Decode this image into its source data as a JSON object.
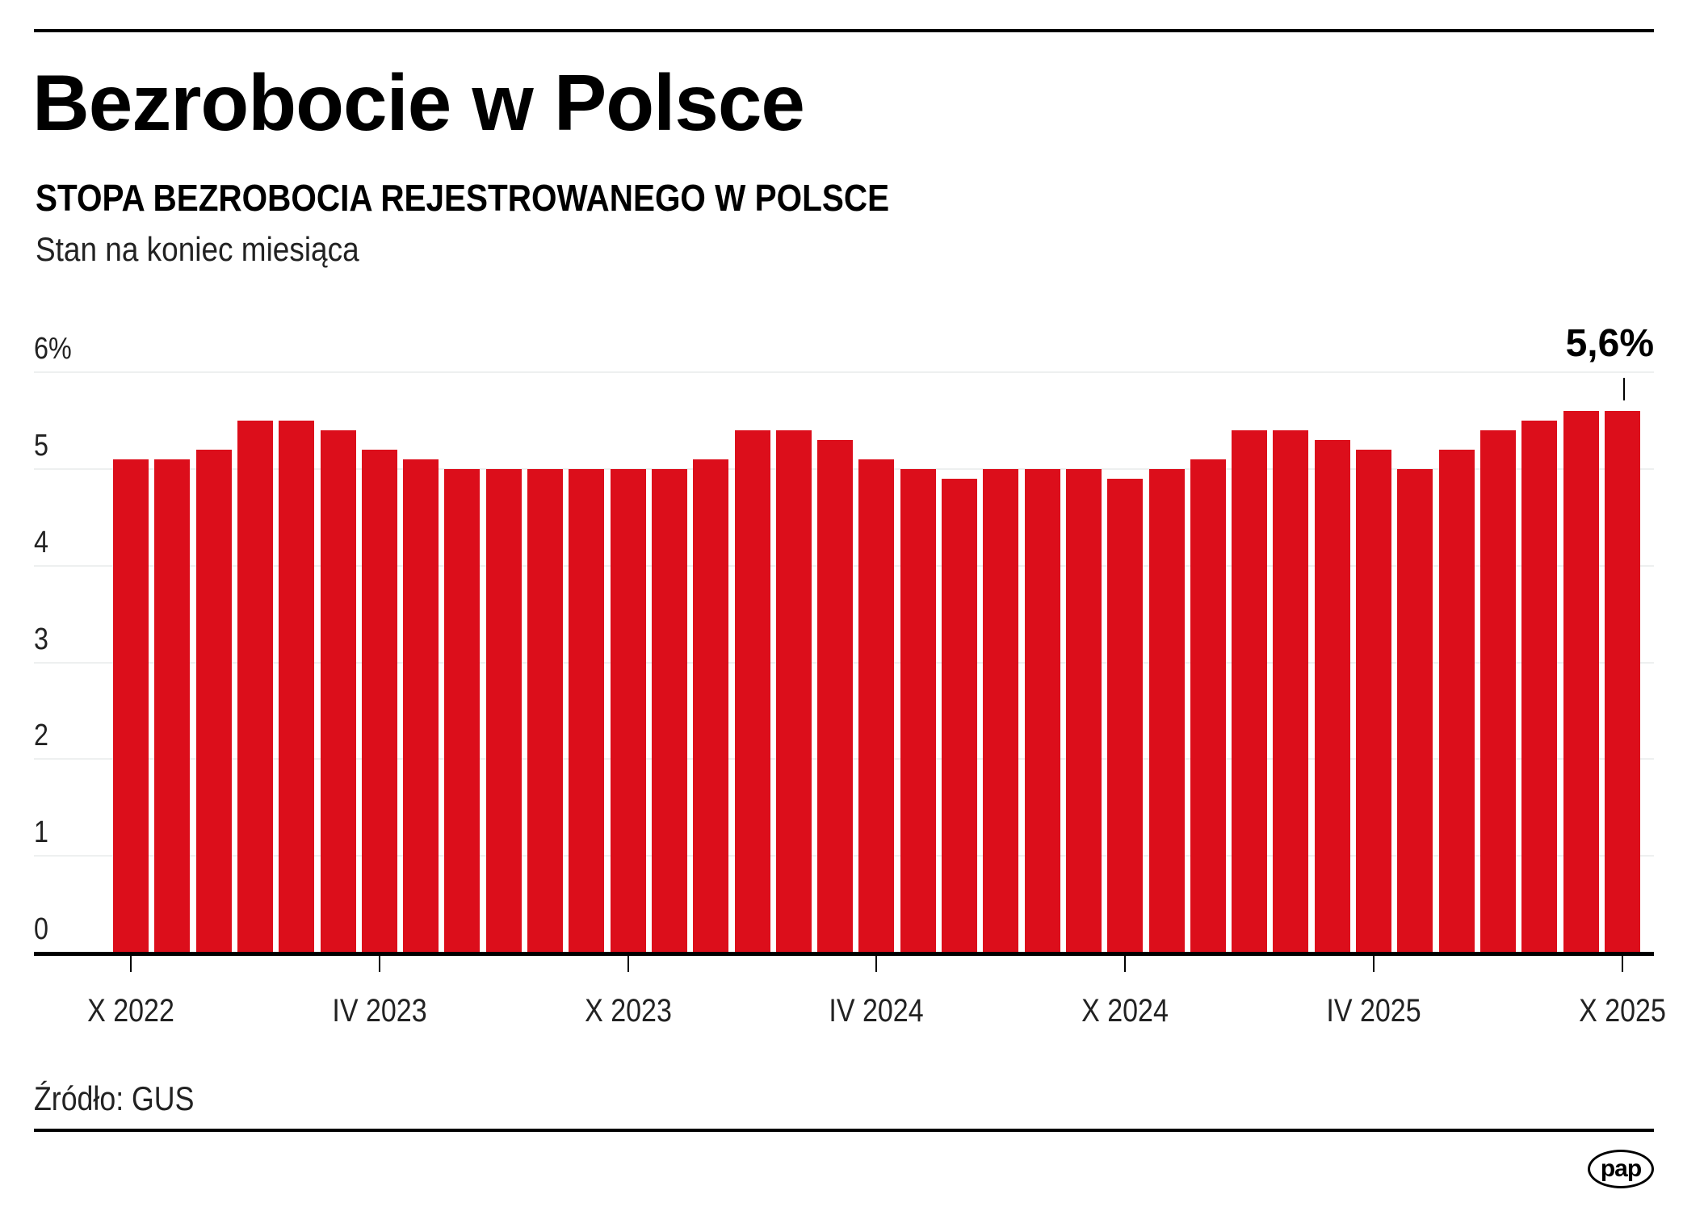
{
  "header": {
    "title": "Bezrobocie w Polsce",
    "subtitle": "STOPA BEZROBOCIA REJESTROWANEGO W POLSCE",
    "note": "Stan na koniec miesiąca"
  },
  "callout": {
    "label": "5,6%"
  },
  "footer": {
    "source": "Źródło: GUS",
    "logo": "pap"
  },
  "colors": {
    "bar": "#dc0e1b",
    "grid": "#eef0f0",
    "axis": "#000000"
  },
  "chart_data": {
    "type": "bar",
    "title": "STOPA BEZROBOCIA REJESTROWANEGO W POLSCE",
    "subtitle": "Stan na koniec miesiąca",
    "xlabel": "",
    "ylabel": "%",
    "ylim": [
      0,
      6
    ],
    "yticks": [
      "0",
      "1",
      "2",
      "3",
      "4",
      "5",
      "6%"
    ],
    "grid": true,
    "legend": null,
    "categories": [
      "X 2022",
      "XI 2022",
      "XII 2022",
      "I 2023",
      "II 2023",
      "III 2023",
      "IV 2023",
      "V 2023",
      "VI 2023",
      "VII 2023",
      "VIII 2023",
      "IX 2023",
      "X 2023",
      "XI 2023",
      "XII 2023",
      "I 2024",
      "II 2024",
      "III 2024",
      "IV 2024",
      "V 2024",
      "VI 2024",
      "VII 2024",
      "VIII 2024",
      "IX 2024",
      "X 2024",
      "XI 2024",
      "XII 2024",
      "I 2025",
      "II 2025",
      "III 2025",
      "IV 2025",
      "V 2025",
      "VI 2025",
      "VII 2025",
      "VIII 2025",
      "IX 2025",
      "X 2025"
    ],
    "values": [
      5.1,
      5.1,
      5.2,
      5.5,
      5.5,
      5.4,
      5.2,
      5.1,
      5.0,
      5.0,
      5.0,
      5.0,
      5.0,
      5.0,
      5.1,
      5.4,
      5.4,
      5.3,
      5.1,
      5.0,
      4.9,
      5.0,
      5.0,
      5.0,
      4.9,
      5.0,
      5.1,
      5.4,
      5.4,
      5.3,
      5.2,
      5.0,
      5.2,
      5.4,
      5.5,
      5.6,
      5.6
    ],
    "x_tick_labels": [
      "X 2022",
      "IV 2023",
      "X 2023",
      "IV 2024",
      "X 2024",
      "IV 2025",
      "X 2025"
    ],
    "annotations": [
      {
        "category": "X 2025",
        "text": "5,6%"
      }
    ],
    "source": "Źródło: GUS"
  }
}
